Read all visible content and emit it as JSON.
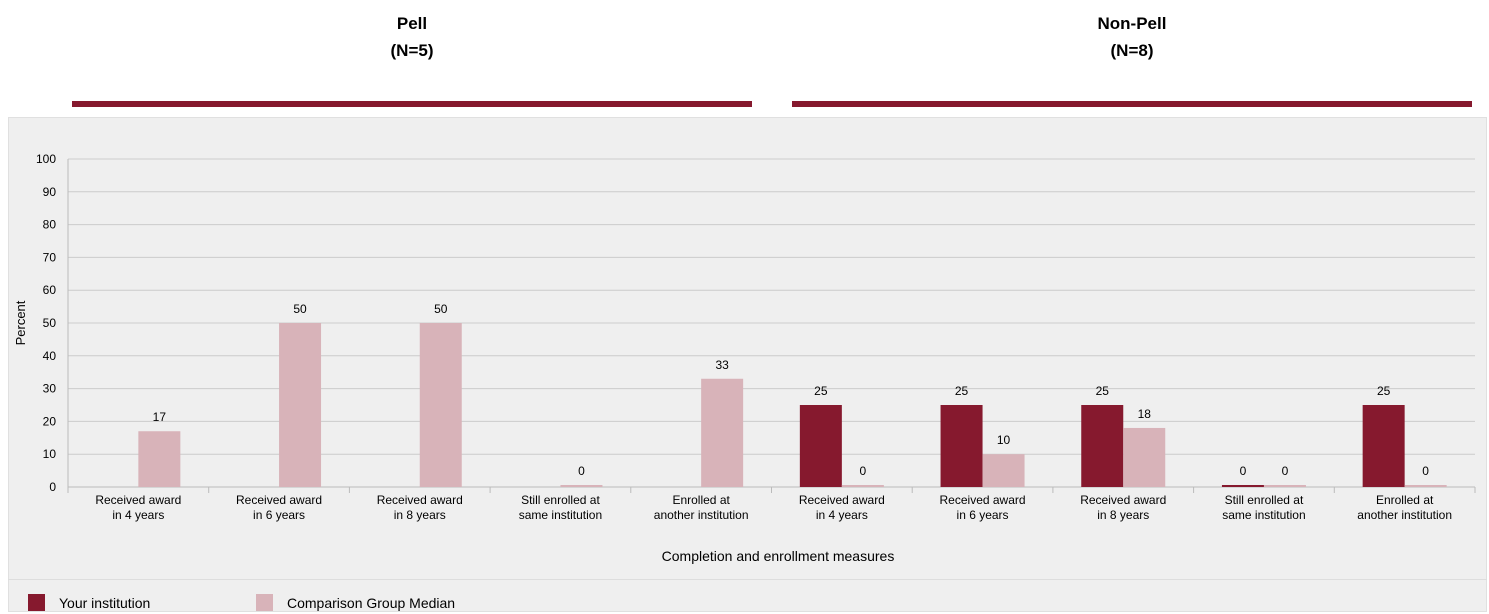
{
  "groups": [
    {
      "title": "Pell",
      "subtitle": "(N=5)"
    },
    {
      "title": "Non-Pell",
      "subtitle": "(N=8)"
    }
  ],
  "colors": {
    "rule": "#86192e",
    "grid": "#cccccc",
    "panel": "#efefef"
  },
  "chart_data": {
    "type": "bar",
    "categories": [
      [
        "Received award",
        "in 4 years"
      ],
      [
        "Received award",
        "in 6 years"
      ],
      [
        "Received award",
        "in 8 years"
      ],
      [
        "Still enrolled at",
        "same institution"
      ],
      [
        "Enrolled at",
        "another institution"
      ],
      [
        "Received award",
        "in 4 years"
      ],
      [
        "Received award",
        "in 6 years"
      ],
      [
        "Received award",
        "in 8 years"
      ],
      [
        "Still enrolled at",
        "same institution"
      ],
      [
        "Enrolled at",
        "another institution"
      ]
    ],
    "series": [
      {
        "name": "Your institution",
        "color": "#86192e",
        "values": [
          null,
          null,
          null,
          null,
          null,
          25,
          25,
          25,
          0,
          25
        ],
        "labels": [
          "",
          "",
          "",
          "",
          "",
          "25",
          "25",
          "25",
          "0",
          "25"
        ]
      },
      {
        "name": "Comparison Group Median",
        "color": "#d8b3b9",
        "values": [
          17,
          50,
          50,
          0,
          33,
          0,
          10,
          18,
          0,
          0
        ],
        "labels": [
          "17",
          "50",
          "50",
          "0",
          "33",
          "0",
          "10",
          "18",
          "0",
          "0"
        ]
      }
    ],
    "xlabel": "Completion and enrollment measures",
    "ylabel": "Percent",
    "ylim": [
      0,
      100
    ],
    "yticks": [
      0,
      10,
      20,
      30,
      40,
      50,
      60,
      70,
      80,
      90,
      100
    ],
    "grid": true,
    "legend": "bottom-left"
  }
}
